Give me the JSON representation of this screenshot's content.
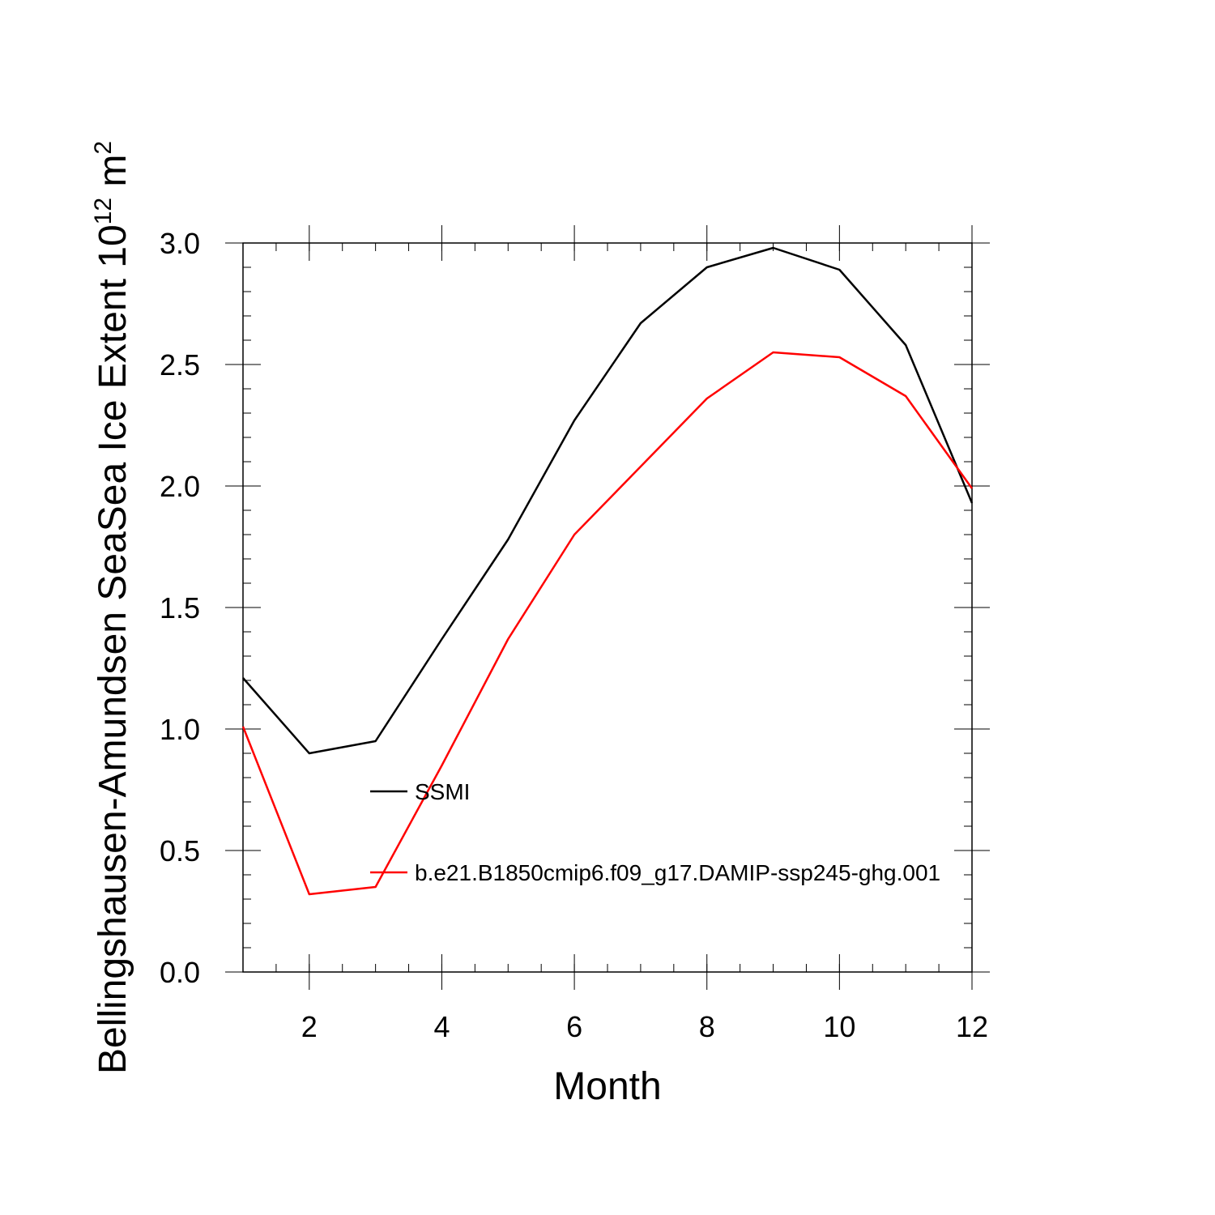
{
  "chart_data": {
    "type": "line",
    "xlabel": "Month",
    "ylabel": {
      "text": "Bellingshausen-Amundsen SeaSea Ice Extent 10",
      "exponent": "12",
      "unit": " m",
      "unit_exponent": "2"
    },
    "xlim": [
      1,
      12
    ],
    "ylim": [
      0.0,
      3.0
    ],
    "x_major_ticks": [
      2,
      4,
      6,
      8,
      10,
      12
    ],
    "x_tick_labels": [
      "2",
      "4",
      "6",
      "8",
      "10",
      "12"
    ],
    "y_major_ticks": [
      0.0,
      0.5,
      1.0,
      1.5,
      2.0,
      2.5,
      3.0
    ],
    "y_tick_labels": [
      "0.0",
      "0.5",
      "1.0",
      "1.5",
      "2.0",
      "2.5",
      "3.0"
    ],
    "grid": false,
    "legend_position": "center",
    "x": [
      1,
      2,
      3,
      4,
      5,
      6,
      7,
      8,
      9,
      10,
      11,
      12
    ],
    "series": [
      {
        "name": "SSMI",
        "color": "#000000",
        "values": [
          1.21,
          0.9,
          0.95,
          1.37,
          1.78,
          2.27,
          2.67,
          2.9,
          2.98,
          2.89,
          2.58,
          1.93
        ]
      },
      {
        "name": "b.e21.B1850cmip6.f09_g17.DAMIP-ssp245-ghg.001",
        "color": "#ff0000",
        "values": [
          1.01,
          0.32,
          0.35,
          0.85,
          1.37,
          1.8,
          2.08,
          2.36,
          2.55,
          2.53,
          2.37,
          1.99
        ]
      }
    ]
  }
}
